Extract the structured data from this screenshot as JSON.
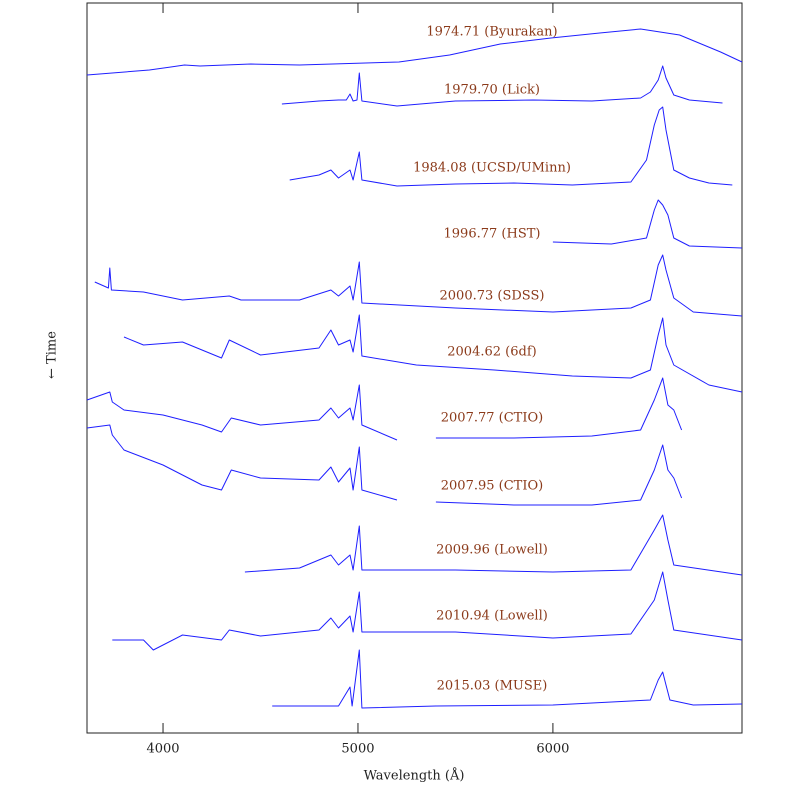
{
  "chart_data": {
    "type": "line",
    "xlabel": "Wavelength (Å)",
    "ylabel": "← Time",
    "xlim": [
      3610,
      6970
    ],
    "xticks": [
      4000,
      5000,
      6000
    ],
    "ylim": [
      0,
      730
    ],
    "label_color": "#8b3a1a",
    "series": [
      {
        "name": "1974.71 (Byurakan)",
        "color": "#1f1fff",
        "x": [
          3610,
          3930,
          4040,
          4110,
          4190,
          4450,
          4700,
          5210,
          5470,
          5730,
          5990,
          6240,
          6450,
          6650,
          6860,
          6970
        ],
        "values": [
          658,
          663,
          666,
          668,
          667,
          669,
          668,
          671,
          678,
          689,
          695,
          700,
          704,
          698,
          681,
          671
        ]
      },
      {
        "name": "1979.70 (Lick)",
        "color": "#1f1fff",
        "x": [
          4610,
          4800,
          4900,
          4940,
          4959,
          4975,
          4995,
          5007,
          5020,
          5200,
          5500,
          5900,
          6200,
          6450,
          6500,
          6540,
          6563,
          6580,
          6620,
          6700,
          6870
        ],
        "values": [
          629,
          632,
          633,
          633,
          639,
          632,
          633,
          660,
          632,
          627,
          632,
          633,
          632,
          635,
          641,
          653,
          667,
          655,
          638,
          633,
          630
        ]
      },
      {
        "name": "1984.08 (UCSD/UMinn)",
        "color": "#1f1fff",
        "x": [
          4650,
          4800,
          4861,
          4900,
          4959,
          4975,
          5007,
          5020,
          5200,
          5500,
          5800,
          6100,
          6400,
          6480,
          6520,
          6545,
          6563,
          6580,
          6620,
          6700,
          6800,
          6920
        ],
        "values": [
          553,
          558,
          563,
          555,
          563,
          553,
          581,
          553,
          547,
          549,
          550,
          548,
          551,
          573,
          608,
          623,
          626,
          603,
          563,
          555,
          550,
          548
        ]
      },
      {
        "name": "1996.77 (HST)",
        "color": "#1f1fff",
        "x": [
          6000,
          6300,
          6480,
          6520,
          6540,
          6563,
          6590,
          6620,
          6700,
          6970
        ],
        "values": [
          491,
          489,
          495,
          523,
          533,
          528,
          518,
          495,
          487,
          485
        ]
      },
      {
        "name": "2000.73 (SDSS)",
        "color": "#1f1fff",
        "x": [
          3650,
          3720,
          3727,
          3735,
          3900,
          4100,
          4340,
          4400,
          4700,
          4861,
          4900,
          4959,
          4975,
          5007,
          5020,
          5500,
          6000,
          6400,
          6500,
          6540,
          6563,
          6580,
          6620,
          6720,
          6970
        ],
        "values": [
          451,
          445,
          465,
          443,
          441,
          433,
          437,
          433,
          433,
          443,
          437,
          447,
          433,
          471,
          430,
          425,
          421,
          425,
          433,
          468,
          478,
          463,
          435,
          421,
          417
        ]
      },
      {
        "name": "2004.62 (6df)",
        "color": "#1f1fff",
        "x": [
          3800,
          3900,
          4100,
          4300,
          4340,
          4500,
          4800,
          4861,
          4900,
          4959,
          4975,
          5007,
          5020,
          5300,
          5700,
          6100,
          6400,
          6500,
          6540,
          6563,
          6580,
          6620,
          6800,
          6970
        ],
        "values": [
          396,
          388,
          391,
          375,
          393,
          378,
          385,
          403,
          388,
          393,
          381,
          418,
          377,
          368,
          363,
          357,
          355,
          363,
          398,
          415,
          388,
          368,
          348,
          341
        ]
      },
      {
        "name": "2007.77 (CTIO)",
        "color": "#1f1fff",
        "x": [
          3610,
          3727,
          3740,
          3800,
          4000,
          4200,
          4300,
          4350,
          4500,
          4800,
          4861,
          4900,
          4959,
          4975,
          5007,
          5020,
          5200,
          5300,
          5400,
          5800,
          6200,
          6450,
          6520,
          6563,
          6590,
          6620,
          6660
        ],
        "values": [
          333,
          341,
          331,
          323,
          318,
          308,
          301,
          315,
          308,
          313,
          325,
          315,
          325,
          313,
          348,
          308,
          293,
          null,
          295,
          295,
          297,
          303,
          333,
          355,
          328,
          323,
          303
        ]
      },
      {
        "name": "2007.95 (CTIO)",
        "color": "#1f1fff",
        "x": [
          3610,
          3727,
          3740,
          3800,
          4000,
          4200,
          4300,
          4350,
          4500,
          4800,
          4861,
          4900,
          4959,
          4975,
          5007,
          5020,
          5200,
          5300,
          5400,
          5800,
          6200,
          6450,
          6520,
          6563,
          6590,
          6620,
          6660
        ],
        "values": [
          305,
          308,
          298,
          283,
          268,
          248,
          243,
          263,
          255,
          253,
          266,
          251,
          265,
          243,
          286,
          243,
          233,
          null,
          231,
          228,
          228,
          233,
          263,
          288,
          263,
          255,
          235
        ]
      },
      {
        "name": "2009.96 (Lowell)",
        "color": "#1f1fff",
        "x": [
          4420,
          4700,
          4861,
          4900,
          4959,
          4975,
          5007,
          5020,
          5500,
          6000,
          6400,
          6520,
          6563,
          6590,
          6620,
          6970
        ],
        "values": [
          161,
          165,
          178,
          168,
          178,
          163,
          207,
          163,
          163,
          161,
          163,
          203,
          218,
          193,
          168,
          158
        ]
      },
      {
        "name": "2010.94 (Lowell)",
        "color": "#1f1fff",
        "x": [
          3740,
          3900,
          3950,
          4100,
          4300,
          4340,
          4500,
          4800,
          4861,
          4900,
          4959,
          4975,
          5007,
          5020,
          5500,
          6000,
          6400,
          6520,
          6563,
          6590,
          6620,
          6970
        ],
        "values": [
          93,
          93,
          83,
          98,
          93,
          103,
          97,
          103,
          115,
          105,
          117,
          101,
          141,
          101,
          101,
          95,
          99,
          133,
          161,
          133,
          103,
          93
        ]
      },
      {
        "name": "2015.03 (MUSE)",
        "color": "#1f1fff",
        "x": [
          4560,
          4900,
          4959,
          4970,
          5007,
          5020,
          5400,
          6000,
          6500,
          6540,
          6563,
          6580,
          6600,
          6720,
          6970
        ],
        "values": [
          27,
          27,
          46,
          27,
          83,
          25,
          27,
          28,
          33,
          53,
          61,
          48,
          33,
          28,
          29
        ]
      }
    ]
  }
}
